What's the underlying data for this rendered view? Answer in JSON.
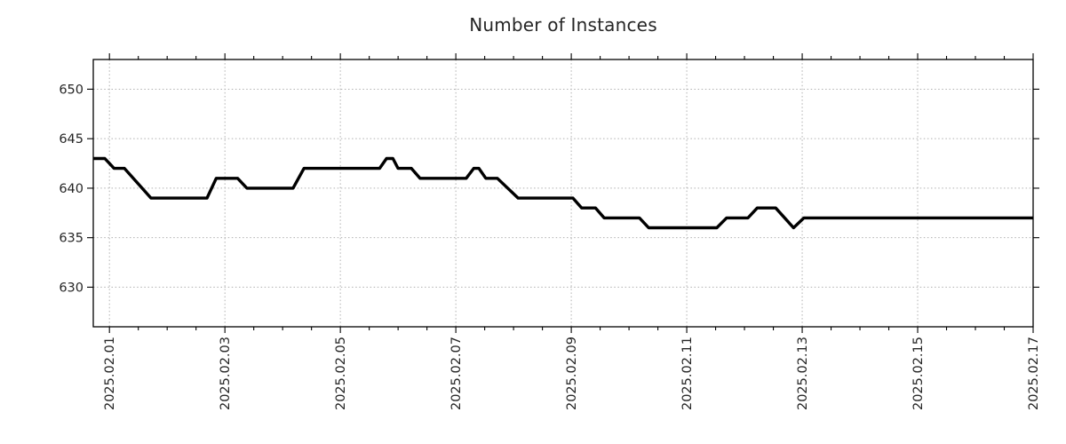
{
  "chart_data": {
    "type": "line",
    "title": "Number of Instances",
    "xlabel": "",
    "ylabel": "",
    "legend": "none",
    "grid": {
      "shown": true,
      "style": "dotted",
      "color": "#b0b0b0",
      "major_only": true
    },
    "x_axis": {
      "kind": "date",
      "days_from": "2025-02-01",
      "xlim_days": [
        -0.28,
        16.0
      ],
      "tick_days": [
        0,
        2,
        4,
        6,
        8,
        10,
        12,
        14,
        16
      ],
      "tick_labels": [
        "2025.02.01",
        "2025.02.03",
        "2025.02.05",
        "2025.02.07",
        "2025.02.09",
        "2025.02.11",
        "2025.02.13",
        "2025.02.15",
        "2025.02.17"
      ],
      "minor_tick_interval_days": 0.5,
      "label_rotation_deg": 90
    },
    "y_axis": {
      "ylim": [
        626,
        653
      ],
      "tick_values": [
        630,
        635,
        640,
        645,
        650
      ],
      "tick_labels": [
        "630",
        "635",
        "640",
        "645",
        "650"
      ]
    },
    "series": [
      {
        "name": "instances",
        "color": "#000000",
        "points_day_value": [
          [
            -0.28,
            643
          ],
          [
            -0.08,
            643
          ],
          [
            0.08,
            642
          ],
          [
            0.26,
            642
          ],
          [
            0.72,
            639
          ],
          [
            1.69,
            639
          ],
          [
            1.85,
            641
          ],
          [
            2.22,
            641
          ],
          [
            2.38,
            640
          ],
          [
            3.18,
            640
          ],
          [
            3.37,
            642
          ],
          [
            4.68,
            642
          ],
          [
            4.8,
            643
          ],
          [
            4.91,
            643
          ],
          [
            5.0,
            642
          ],
          [
            5.23,
            642
          ],
          [
            5.38,
            641
          ],
          [
            6.18,
            641
          ],
          [
            6.31,
            642
          ],
          [
            6.4,
            642
          ],
          [
            6.52,
            641
          ],
          [
            6.72,
            641
          ],
          [
            7.08,
            639
          ],
          [
            8.03,
            639
          ],
          [
            8.18,
            638
          ],
          [
            8.42,
            638
          ],
          [
            8.57,
            637
          ],
          [
            9.18,
            637
          ],
          [
            9.34,
            636
          ],
          [
            10.52,
            636
          ],
          [
            10.69,
            637
          ],
          [
            11.06,
            637
          ],
          [
            11.22,
            638
          ],
          [
            11.54,
            638
          ],
          [
            11.85,
            636
          ],
          [
            12.03,
            637
          ],
          [
            16.0,
            637
          ]
        ],
        "value_start": 643,
        "value_min": 636,
        "value_max": 643,
        "value_end": 637
      }
    ]
  }
}
